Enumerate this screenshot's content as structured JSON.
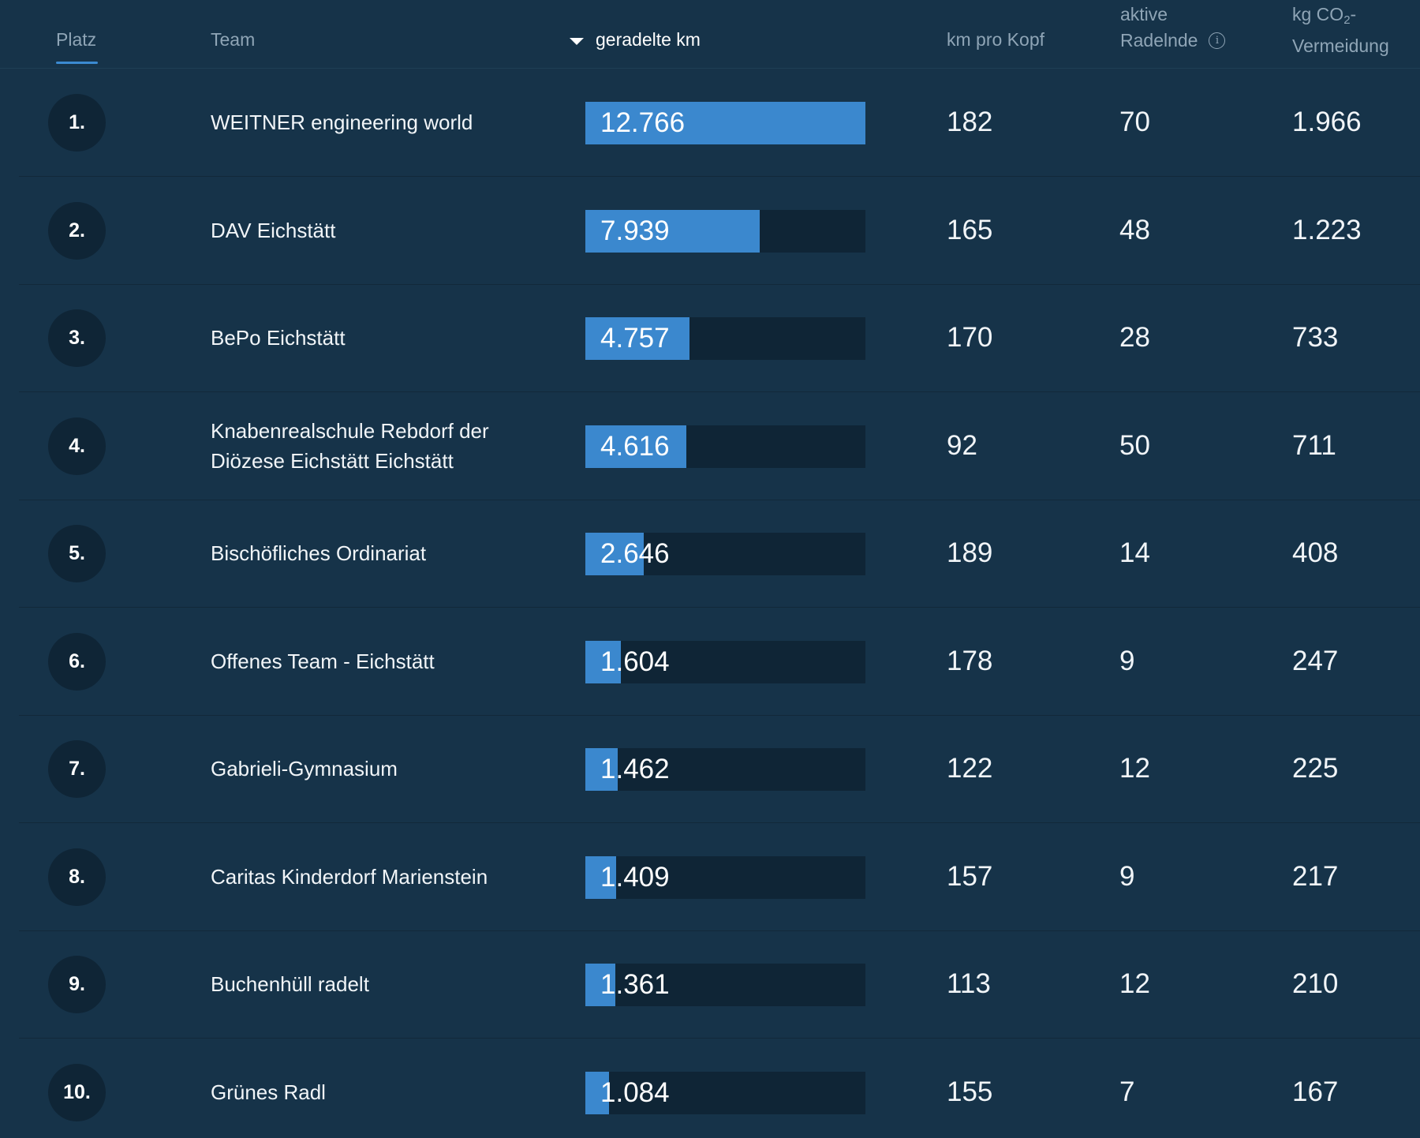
{
  "header": {
    "platz": "Platz",
    "team": "Team",
    "km": "geradelte km",
    "km_pro_kopf": "km pro Kopf",
    "aktive_line1": "aktive",
    "aktive_line2": "Radelnde",
    "co2_line1_prefix": "kg CO",
    "co2_sub": "2",
    "co2_line1_suffix": "-",
    "co2_line2": "Vermeidung",
    "sort_icon": "caret-down-icon",
    "info_icon": "info-icon"
  },
  "colors": {
    "background": "#163349",
    "bar_fill": "#3b88ce",
    "bar_track": "#0f2536",
    "accent": "#3b8ad1"
  },
  "rows": [
    {
      "rank": "1.",
      "team": "WEITNER engineering world",
      "km": "12.766",
      "km_value": 12766,
      "kopf": "182",
      "aktive": "70",
      "co2": "1.966"
    },
    {
      "rank": "2.",
      "team": "DAV Eichstätt",
      "km": "7.939",
      "km_value": 7939,
      "kopf": "165",
      "aktive": "48",
      "co2": "1.223"
    },
    {
      "rank": "3.",
      "team": "BePo Eichstätt",
      "km": "4.757",
      "km_value": 4757,
      "kopf": "170",
      "aktive": "28",
      "co2": "733"
    },
    {
      "rank": "4.",
      "team": "Knabenrealschule Rebdorf der Diözese Eichstätt Eichstätt",
      "km": "4.616",
      "km_value": 4616,
      "kopf": "92",
      "aktive": "50",
      "co2": "711"
    },
    {
      "rank": "5.",
      "team": "Bischöfliches Ordinariat",
      "km": "2.646",
      "km_value": 2646,
      "kopf": "189",
      "aktive": "14",
      "co2": "408"
    },
    {
      "rank": "6.",
      "team": "Offenes Team - Eichstätt",
      "km": "1.604",
      "km_value": 1604,
      "kopf": "178",
      "aktive": "9",
      "co2": "247"
    },
    {
      "rank": "7.",
      "team": "Gabrieli-Gymnasium",
      "km": "1.462",
      "km_value": 1462,
      "kopf": "122",
      "aktive": "12",
      "co2": "225"
    },
    {
      "rank": "8.",
      "team": "Caritas Kinderdorf Marienstein",
      "km": "1.409",
      "km_value": 1409,
      "kopf": "157",
      "aktive": "9",
      "co2": "217"
    },
    {
      "rank": "9.",
      "team": "Buchenhüll radelt",
      "km": "1.361",
      "km_value": 1361,
      "kopf": "113",
      "aktive": "12",
      "co2": "210"
    },
    {
      "rank": "10.",
      "team": "Grünes Radl",
      "km": "1.084",
      "km_value": 1084,
      "kopf": "155",
      "aktive": "7",
      "co2": "167"
    }
  ]
}
